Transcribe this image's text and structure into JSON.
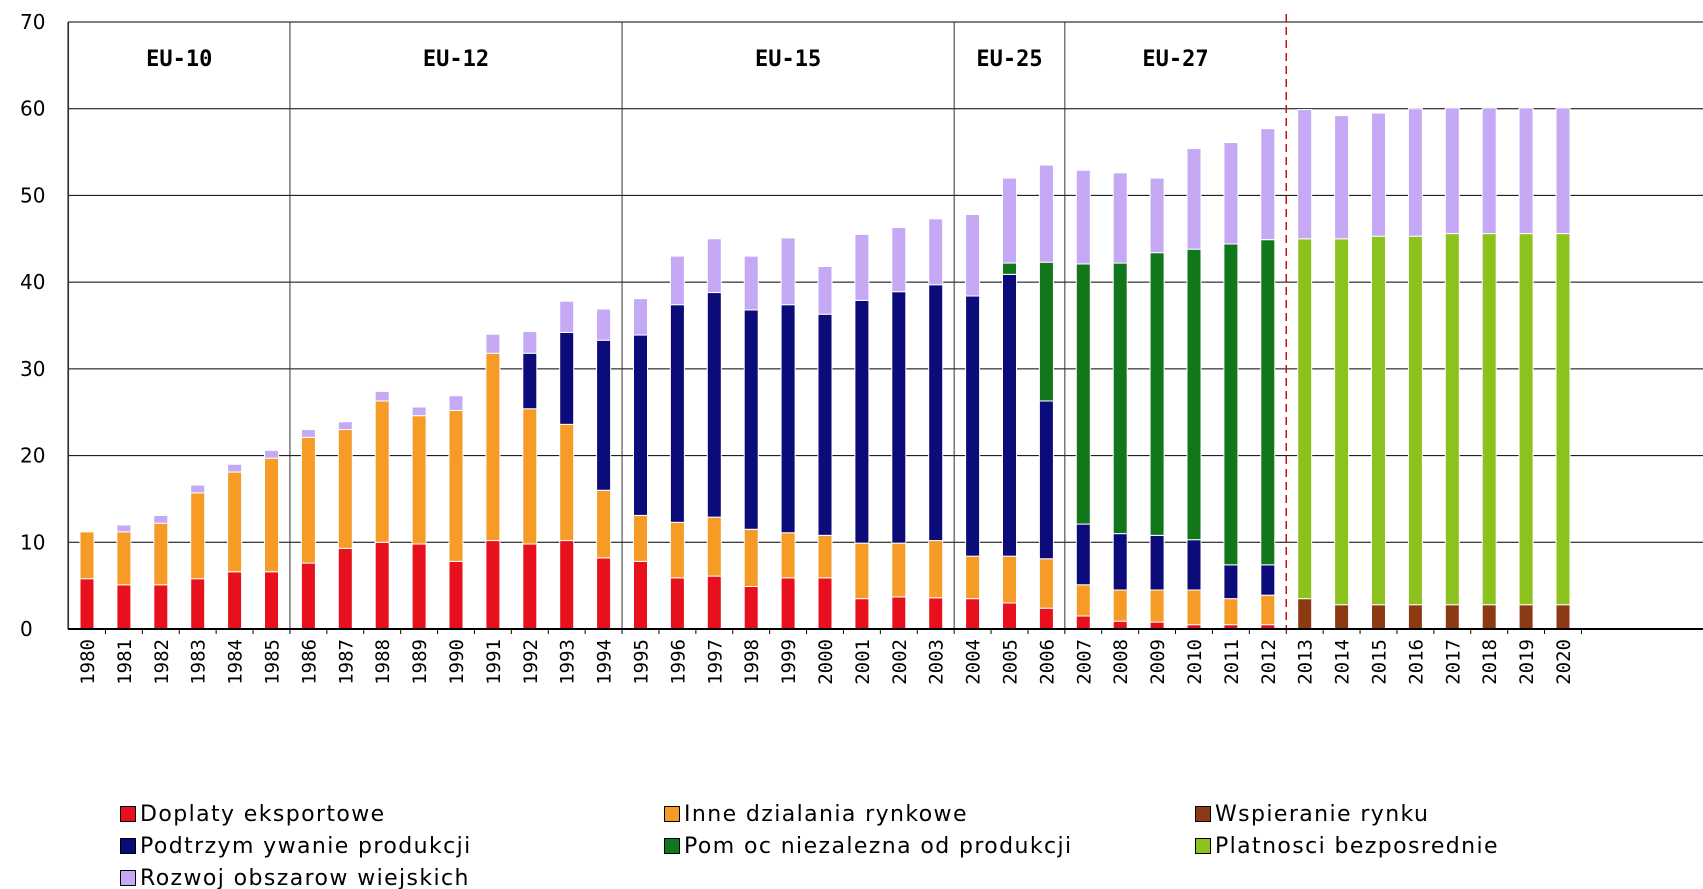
{
  "chart_data": {
    "type": "bar",
    "stacked": true,
    "title": "",
    "xlabel": "",
    "ylabel": "",
    "ylim": [
      0,
      70
    ],
    "yticks": [
      "0",
      "10",
      "20",
      "30",
      "40",
      "50",
      "60",
      "70"
    ],
    "grid": true,
    "legend_position": "bottom",
    "categories": [
      "1980",
      "1981",
      "1982",
      "1983",
      "1984",
      "1985",
      "1986",
      "1987",
      "1988",
      "1989",
      "1990",
      "1991",
      "1992",
      "1993",
      "1994",
      "1995",
      "1996",
      "1997",
      "1998",
      "1999",
      "2000",
      "2001",
      "2002",
      "2003",
      "2004",
      "2005",
      "2006",
      "2007",
      "2008",
      "2009",
      "2010",
      "2011",
      "2012",
      "2013",
      "2014",
      "2015",
      "2016",
      "2017",
      "2018",
      "2019",
      "2020"
    ],
    "series": [
      {
        "name": "Wspieranie rynku",
        "color": "#8b3a14",
        "values": [
          0,
          0,
          0,
          0,
          0,
          0,
          0,
          0,
          0,
          0,
          0,
          0,
          0,
          0,
          0,
          0,
          0,
          0,
          0,
          0,
          0,
          0,
          0,
          0,
          0,
          0,
          0,
          0,
          0,
          0,
          0,
          0,
          0,
          3.5,
          2.8,
          2.8,
          2.8,
          2.8,
          2.8,
          2.8,
          2.8
        ]
      },
      {
        "name": "Doplaty eksportowe",
        "color": "#e8101c",
        "values": [
          5.8,
          5.1,
          5.1,
          5.8,
          6.6,
          6.6,
          7.6,
          9.3,
          10.0,
          9.8,
          7.8,
          10.2,
          9.8,
          10.2,
          8.2,
          7.8,
          5.9,
          6.1,
          4.9,
          5.9,
          5.9,
          3.5,
          3.7,
          3.6,
          3.5,
          3.0,
          2.4,
          1.5,
          0.9,
          0.8,
          0.5,
          0.5,
          0.5,
          0,
          0,
          0,
          0,
          0,
          0,
          0,
          0
        ]
      },
      {
        "name": "Inne dzialania rynkowe",
        "color": "#f59b26",
        "values": [
          5.4,
          6.1,
          7.1,
          9.9,
          11.5,
          13.1,
          14.5,
          13.7,
          16.3,
          14.8,
          17.4,
          21.6,
          15.6,
          13.4,
          7.8,
          5.3,
          6.4,
          6.8,
          6.6,
          5.2,
          4.9,
          6.4,
          6.2,
          6.6,
          4.9,
          5.4,
          5.7,
          3.6,
          3.6,
          3.7,
          4.0,
          3.0,
          3.4,
          0,
          0,
          0,
          0,
          0,
          0,
          0,
          0
        ]
      },
      {
        "name": "Podtrzym ywanie produkcji",
        "color": "#0b0b7a",
        "values": [
          0,
          0,
          0,
          0,
          0,
          0,
          0,
          0,
          0,
          0,
          0,
          0,
          6.4,
          10.6,
          17.3,
          20.8,
          25.1,
          25.9,
          25.3,
          26.3,
          25.5,
          28.0,
          29.0,
          29.5,
          30.0,
          32.5,
          18.2,
          7.0,
          6.5,
          6.3,
          5.8,
          3.9,
          3.5,
          0,
          0,
          0,
          0,
          0,
          0,
          0,
          0
        ]
      },
      {
        "name": "Pom oc niezalezna od produkcji",
        "color": "#12761a",
        "values": [
          0,
          0,
          0,
          0,
          0,
          0,
          0,
          0,
          0,
          0,
          0,
          0,
          0,
          0,
          0,
          0,
          0,
          0,
          0,
          0,
          0,
          0,
          0,
          0,
          0,
          1.3,
          16.0,
          30.0,
          31.2,
          32.6,
          33.5,
          37.0,
          37.5,
          0,
          0,
          0,
          0,
          0,
          0,
          0,
          0
        ]
      },
      {
        "name": "Platnosci bezposrednie",
        "color": "#8cc21e",
        "values": [
          0,
          0,
          0,
          0,
          0,
          0,
          0,
          0,
          0,
          0,
          0,
          0,
          0,
          0,
          0,
          0,
          0,
          0,
          0,
          0,
          0,
          0,
          0,
          0,
          0,
          0,
          0,
          0,
          0,
          0,
          0,
          0,
          0,
          41.5,
          42.2,
          42.5,
          42.5,
          42.8,
          42.8,
          42.8,
          42.8
        ]
      },
      {
        "name": "Rozwoj obszarow wiejskich",
        "color": "#c5a9f5",
        "values": [
          0,
          0.8,
          0.9,
          0.9,
          0.9,
          0.9,
          0.9,
          0.9,
          1.1,
          1.0,
          1.7,
          2.2,
          2.5,
          3.6,
          3.6,
          4.2,
          5.6,
          6.2,
          6.2,
          7.7,
          5.5,
          7.6,
          7.4,
          7.6,
          9.4,
          9.8,
          11.2,
          10.8,
          10.4,
          8.6,
          11.6,
          11.7,
          12.8,
          14.9,
          14.2,
          14.2,
          14.7,
          14.5,
          14.5,
          14.5,
          14.5
        ]
      }
    ],
    "enlargements": [
      {
        "label": "EU-10",
        "from": "1980",
        "to": "1985"
      },
      {
        "label": "EU-12",
        "from": "1986",
        "to": "1994"
      },
      {
        "label": "EU-15",
        "from": "1995",
        "to": "2003"
      },
      {
        "label": "EU-25",
        "from": "2004",
        "to": "2006"
      },
      {
        "label": "EU-27",
        "from": "2007",
        "to": "2012"
      }
    ],
    "forecast_divider_after": "2012"
  },
  "legend": [
    {
      "label": "Doplaty eksportowe",
      "color": "#e8101c"
    },
    {
      "label": "Inne dzialania rynkowe",
      "color": "#f59b26"
    },
    {
      "label": "Wspieranie rynku",
      "color": "#8b3a14"
    },
    {
      "label": "Podtrzym ywanie produkcji",
      "color": "#0b0b7a"
    },
    {
      "label": "Pom oc niezalezna od produkcji",
      "color": "#12761a"
    },
    {
      "label": "Platnosci bezposrednie",
      "color": "#8cc21e"
    },
    {
      "label": "Rozwoj obszarow wiejskich",
      "color": "#c5a9f5"
    }
  ]
}
